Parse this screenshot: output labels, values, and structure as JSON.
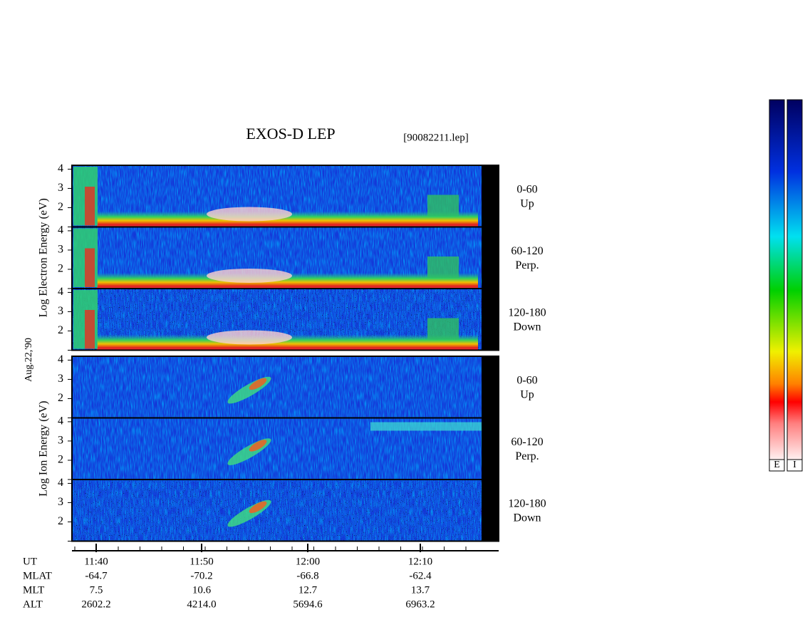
{
  "chart_data": {
    "type": "spectrogram",
    "title": "EXOS-D LEP",
    "subtitle": "[90082211.lep]",
    "date_label": "Aug.22,'90",
    "ylim": [
      1,
      4.2
    ],
    "yticks": [
      2,
      3,
      4
    ],
    "groups": [
      {
        "ylabel": "Log  Electron  Energy (eV)",
        "panels": [
          {
            "label": [
              "0-60",
              "Up"
            ]
          },
          {
            "label": [
              "60-120",
              "Perp."
            ]
          },
          {
            "label": [
              "120-180",
              "Down"
            ]
          }
        ]
      },
      {
        "ylabel": "Log   Ion   Energy (eV)",
        "panels": [
          {
            "label": [
              "0-60",
              "Up"
            ]
          },
          {
            "label": [
              "60-120",
              "Perp."
            ]
          },
          {
            "label": [
              "120-180",
              "Down"
            ]
          }
        ]
      }
    ],
    "ephemeris": [
      {
        "name": "UT",
        "values": [
          "11:40",
          "11:50",
          "12:00",
          "12:10"
        ]
      },
      {
        "name": "MLAT",
        "values": [
          "-64.7",
          "-70.2",
          "-66.8",
          "-62.4"
        ]
      },
      {
        "name": "MLT",
        "values": [
          "7.5",
          "10.6",
          "12.7",
          "13.7"
        ]
      },
      {
        "name": "ALT",
        "values": [
          "2602.2",
          "4214.0",
          "5694.6",
          "6963.2"
        ]
      }
    ],
    "colorbars": [
      "E",
      "I"
    ]
  }
}
